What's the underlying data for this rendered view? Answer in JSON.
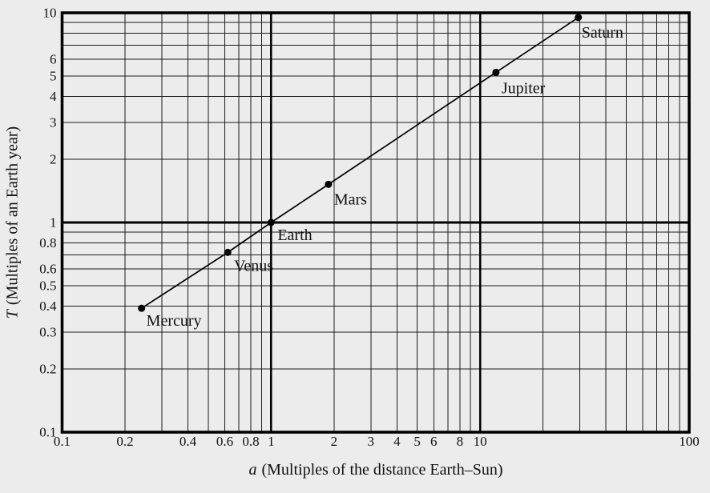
{
  "figure": {
    "background": "#ececec",
    "ink": "#111111"
  },
  "chart_data": {
    "type": "scatter",
    "scale": "log-log",
    "title": "",
    "xlabel": "a (Multiples of the distance Earth–Sun)",
    "ylabel": "T (Multiples of an Earth year)",
    "xlabel_parts": {
      "symbol": "a",
      "text": "(Multiples of the distance Earth–Sun)"
    },
    "ylabel_parts": {
      "symbol": "T",
      "text": "(Multiples of an Earth year)"
    },
    "xlim": [
      0.1,
      100
    ],
    "ylim": [
      0.1,
      10
    ],
    "grid": "full log grid, minor lines at 2-9 per decade",
    "legend": "none",
    "x_tick_labels": [
      "0.1",
      "0.2",
      "0.4",
      "0.6",
      "0.8",
      "1",
      "2",
      "3",
      "4",
      "5",
      "6",
      "8",
      "10",
      "100"
    ],
    "y_tick_labels": [
      "0.1",
      "0.2",
      "0.3",
      "0.4",
      "0.5",
      "0.6",
      "0.8",
      "1",
      "2",
      "3",
      "4",
      "5",
      "6",
      "10"
    ],
    "x_major_gridlines": [
      0.1,
      1,
      10,
      100
    ],
    "y_major_gridlines": [
      0.1,
      1,
      10
    ],
    "points": [
      {
        "label": "Mercury",
        "x": 0.24,
        "y": 0.39,
        "label_offset": [
          6,
          7
        ]
      },
      {
        "label": "Venus",
        "x": 0.62,
        "y": 0.72,
        "label_offset": [
          8,
          8
        ]
      },
      {
        "label": "Earth",
        "x": 1.0,
        "y": 1.0,
        "label_offset": [
          8,
          7
        ]
      },
      {
        "label": "Mars",
        "x": 1.88,
        "y": 1.52,
        "label_offset": [
          7,
          10
        ]
      },
      {
        "label": "Jupiter",
        "x": 11.9,
        "y": 5.2,
        "label_offset": [
          7,
          11
        ]
      },
      {
        "label": "Saturn",
        "x": 29.5,
        "y": 9.5,
        "label_offset": [
          4,
          10
        ]
      }
    ],
    "line": {
      "type": "straight-through-all-points",
      "color": "#000000",
      "width": 1.7
    },
    "marker": {
      "shape": "circle",
      "radius": 4.5,
      "color": "#000000"
    }
  }
}
